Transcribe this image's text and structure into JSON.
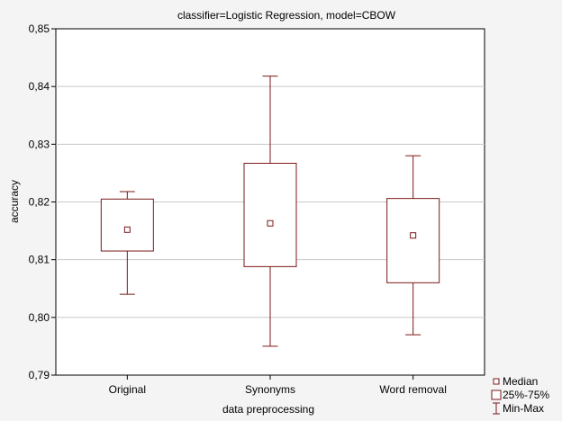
{
  "chart_data": {
    "type": "box",
    "title": "classifier=Logistic Regression, model=CBOW",
    "xlabel": "data preprocessing",
    "ylabel": "accuracy",
    "ylim": [
      0.79,
      0.85
    ],
    "yticks": [
      "0,79",
      "0,80",
      "0,81",
      "0,82",
      "0,83",
      "0,84",
      "0,85"
    ],
    "grid": true,
    "legend_position": "bottom-right",
    "categories": [
      "Original",
      "Synonyms",
      "Word removal"
    ],
    "series": [
      {
        "category": "Original",
        "min": 0.804,
        "q1": 0.8115,
        "median": 0.8152,
        "q3": 0.8205,
        "max": 0.8218
      },
      {
        "category": "Synonyms",
        "min": 0.795,
        "q1": 0.8088,
        "median": 0.8163,
        "q3": 0.8267,
        "max": 0.8418
      },
      {
        "category": "Word removal",
        "min": 0.797,
        "q1": 0.806,
        "median": 0.8142,
        "q3": 0.8206,
        "max": 0.828
      }
    ],
    "legend": [
      {
        "key": "median",
        "label": "Median"
      },
      {
        "key": "box",
        "label": "25%-75%"
      },
      {
        "key": "range",
        "label": "Min-Max"
      }
    ],
    "colors": {
      "box_stroke": "#7b1818",
      "box_fill": "#ffffff",
      "plot_bg": "#ffffff",
      "grid": "#c8c8c8",
      "axis": "#000000"
    }
  }
}
